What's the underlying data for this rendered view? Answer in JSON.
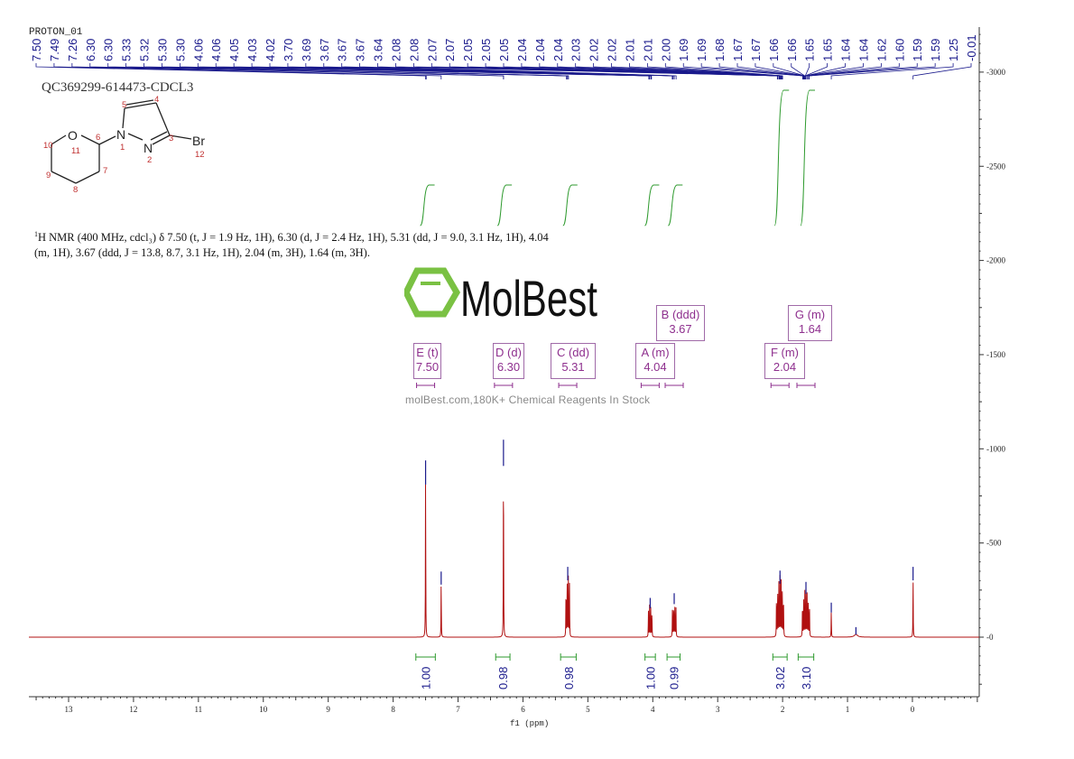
{
  "header": {
    "experiment": "PROTON_01",
    "sample": "QC369299-614473-CDCL3",
    "nmr_text": "H NMR (400 MHz, cdcl₃) δ 7.50 (t, J = 1.9 Hz, 1H), 6.30 (d, J = 2.4 Hz, 1H), 5.31 (dd, J = 9.0, 3.1 Hz, 1H), 4.04 (m, 1H), 3.67 (ddd, J = 13.8, 8.7, 3.1 Hz, 1H), 2.04 (m, 3H), 1.64 (m, 3H).",
    "nmr_sup": "1"
  },
  "structure": {
    "atoms": [
      "O",
      "N",
      "N",
      "Br"
    ],
    "numbers": [
      "1",
      "2",
      "3",
      "4",
      "5",
      "6",
      "7",
      "8",
      "9",
      "10",
      "11",
      "12"
    ]
  },
  "watermark": {
    "logo": "MolBest",
    "tagline": "molBest.com,180K+ Chemical Reagents In Stock"
  },
  "chart_data": {
    "type": "line",
    "xlabel": "f1 (ppm)",
    "ylabel": "",
    "xlim": [
      13.6,
      -1.0
    ],
    "ylim": [
      -320,
      3240
    ],
    "x_ticks": [
      "13",
      "12",
      "11",
      "10",
      "9",
      "8",
      "7",
      "6",
      "5",
      "4",
      "3",
      "2",
      "1",
      "0"
    ],
    "y_ticks": [
      "3000",
      "2500",
      "2000",
      "1500",
      "1000",
      "500",
      "0"
    ],
    "grid": false,
    "colors": {
      "spectrum": "#b01010",
      "peak_marks": "#1a1a8c",
      "integral": "#2e9a2e",
      "multiplet": "#8e2f8e"
    },
    "peak_labels": [
      "7.50",
      "7.49",
      "7.26",
      "6.30",
      "6.30",
      "5.33",
      "5.32",
      "5.30",
      "5.30",
      "4.06",
      "4.06",
      "4.05",
      "4.03",
      "4.02",
      "3.70",
      "3.69",
      "3.67",
      "3.67",
      "3.67",
      "3.64",
      "2.08",
      "2.08",
      "2.07",
      "2.07",
      "2.05",
      "2.05",
      "2.05",
      "2.04",
      "2.04",
      "2.04",
      "2.03",
      "2.02",
      "2.02",
      "2.01",
      "2.01",
      "2.00",
      "1.69",
      "1.69",
      "1.68",
      "1.67",
      "1.67",
      "1.66",
      "1.66",
      "1.65",
      "1.65",
      "1.64",
      "1.64",
      "1.62",
      "1.60",
      "1.59",
      "1.59",
      "1.25",
      "-0.01"
    ],
    "peaks": [
      {
        "shift": 7.5,
        "height": 900
      },
      {
        "shift": 7.26,
        "height": 310
      },
      {
        "shift": 6.3,
        "height": 1010
      },
      {
        "shift": 5.31,
        "height": 335
      },
      {
        "shift": 4.04,
        "height": 170
      },
      {
        "shift": 3.67,
        "height": 195
      },
      {
        "shift": 2.04,
        "height": 315
      },
      {
        "shift": 1.64,
        "height": 255
      },
      {
        "shift": 1.25,
        "height": 145
      },
      {
        "shift": 0.87,
        "height": 15
      },
      {
        "shift": -0.01,
        "height": 335
      }
    ],
    "multiplets": [
      {
        "label": "E (t)",
        "shift": "7.50"
      },
      {
        "label": "D (d)",
        "shift": "6.30"
      },
      {
        "label": "C (dd)",
        "shift": "5.31"
      },
      {
        "label": "A (m)",
        "shift": "4.04"
      },
      {
        "label": "B (ddd)",
        "shift": "3.67"
      },
      {
        "label": "F (m)",
        "shift": "2.04"
      },
      {
        "label": "G (m)",
        "shift": "1.64"
      }
    ],
    "integrals": [
      {
        "from": 7.65,
        "to": 7.35,
        "value": "1.00"
      },
      {
        "from": 6.42,
        "to": 6.2,
        "value": "0.98"
      },
      {
        "from": 5.42,
        "to": 5.18,
        "value": "0.98"
      },
      {
        "from": 4.12,
        "to": 3.96,
        "value": "1.00"
      },
      {
        "from": 3.78,
        "to": 3.58,
        "value": "0.99"
      },
      {
        "from": 2.15,
        "to": 1.93,
        "value": "3.02"
      },
      {
        "from": 1.76,
        "to": 1.52,
        "value": "3.10"
      }
    ]
  }
}
